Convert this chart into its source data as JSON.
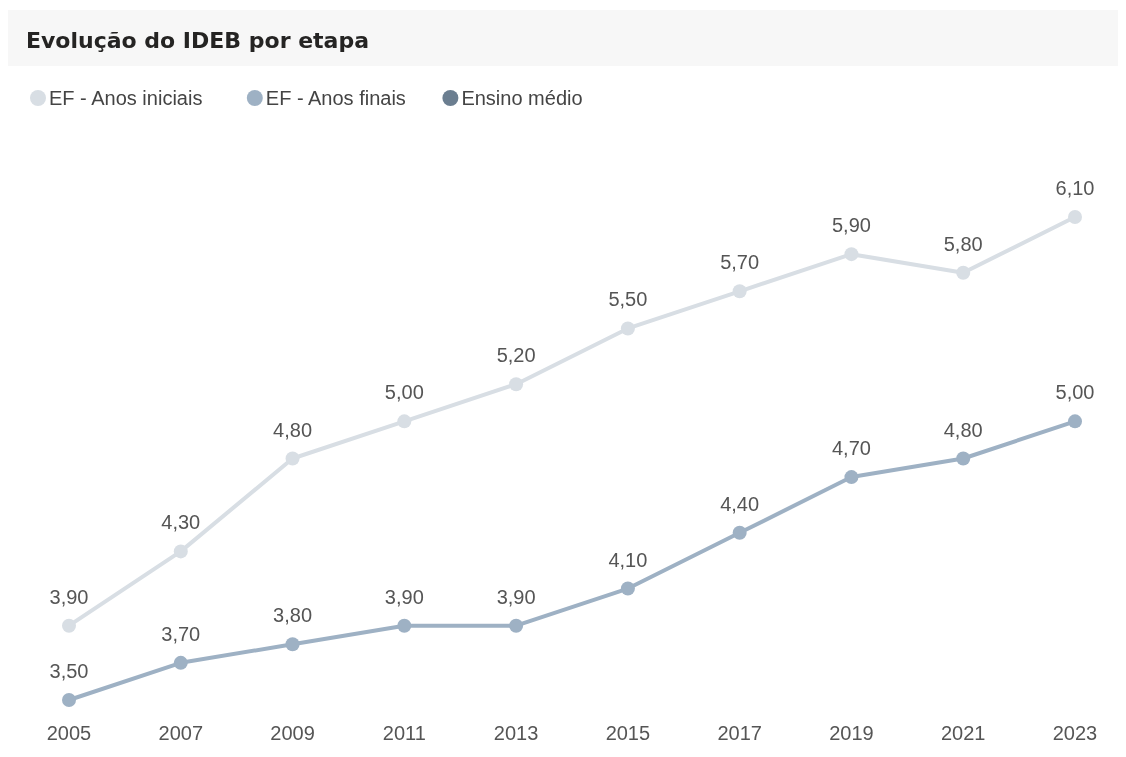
{
  "chart_data": {
    "type": "line",
    "title": "Evolução do IDEB por etapa",
    "categories": [
      "2005",
      "2007",
      "2009",
      "2011",
      "2013",
      "2015",
      "2017",
      "2019",
      "2021",
      "2023"
    ],
    "series": [
      {
        "name": "EF - Anos iniciais",
        "color": "#d8dee4",
        "values": [
          3.9,
          4.3,
          4.8,
          5.0,
          5.2,
          5.5,
          5.7,
          5.9,
          5.8,
          6.1
        ],
        "value_labels": [
          "3,90",
          "4,30",
          "4,80",
          "5,00",
          "5,20",
          "5,50",
          "5,70",
          "5,90",
          "5,80",
          "6,10"
        ]
      },
      {
        "name": "EF - Anos finais",
        "color": "#9eb1c4",
        "values": [
          3.5,
          3.7,
          3.8,
          3.9,
          3.9,
          4.1,
          4.4,
          4.7,
          4.8,
          5.0
        ],
        "value_labels": [
          "3,50",
          "3,70",
          "3,80",
          "3,90",
          "3,90",
          "4,10",
          "4,40",
          "4,70",
          "4,80",
          "5,00"
        ]
      },
      {
        "name": "Ensino médio",
        "color": "#6b7e90",
        "values": [
          null,
          null,
          null,
          null,
          null,
          null,
          null,
          null,
          null,
          null
        ]
      }
    ],
    "legend": "top left",
    "marker": "circle",
    "tick_labels": "x"
  }
}
